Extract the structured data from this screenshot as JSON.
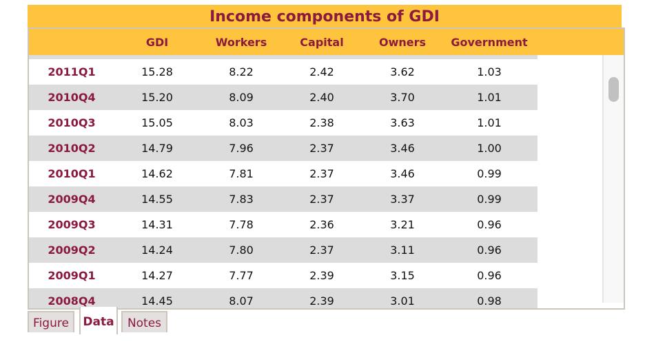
{
  "title": "Income components of GDI",
  "columns": [
    "",
    "GDI",
    "Workers",
    "Capital",
    "Owners",
    "Government"
  ],
  "rows": [
    [
      "2011Q1",
      "15.28",
      "8.22",
      "2.42",
      "3.62",
      "1.03"
    ],
    [
      "2010Q4",
      "15.20",
      "8.09",
      "2.40",
      "3.70",
      "1.01"
    ],
    [
      "2010Q3",
      "15.05",
      "8.03",
      "2.38",
      "3.63",
      "1.01"
    ],
    [
      "2010Q2",
      "14.79",
      "7.96",
      "2.37",
      "3.46",
      "1.00"
    ],
    [
      "2010Q1",
      "14.62",
      "7.81",
      "2.37",
      "3.46",
      "0.99"
    ],
    [
      "2009Q4",
      "14.55",
      "7.83",
      "2.37",
      "3.37",
      "0.99"
    ],
    [
      "2009Q3",
      "14.31",
      "7.78",
      "2.36",
      "3.21",
      "0.96"
    ],
    [
      "2009Q2",
      "14.24",
      "7.80",
      "2.37",
      "3.11",
      "0.96"
    ],
    [
      "2009Q1",
      "14.27",
      "7.77",
      "2.39",
      "3.15",
      "0.96"
    ],
    [
      "2008Q4",
      "14.45",
      "8.07",
      "2.39",
      "3.01",
      "0.98"
    ]
  ],
  "tabs": [
    {
      "label": "Figure",
      "active": false
    },
    {
      "label": "Data",
      "active": true
    },
    {
      "label": "Notes",
      "active": false
    }
  ],
  "colors": {
    "accent": "#8b1a3e",
    "header": "#ffc43d",
    "stripe": "#dcdcdc"
  }
}
